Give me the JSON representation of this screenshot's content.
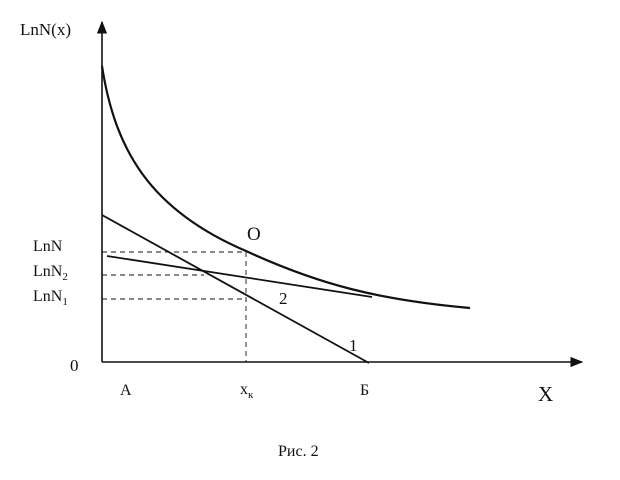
{
  "diagram": {
    "y_axis_label": "LnN(x)",
    "x_axis_label": "X",
    "origin_label": "0",
    "y_ticks": {
      "lnN": {
        "base": "LnN",
        "sub": ""
      },
      "lnN2": {
        "base": "LnN",
        "sub": "2"
      },
      "lnN1": {
        "base": "LnN",
        "sub": "1"
      }
    },
    "x_ticks": {
      "a": "А",
      "xk": {
        "base": "x",
        "sub": "к"
      },
      "b": "Б"
    },
    "point_label": "O",
    "line1_label": "1",
    "line2_label": "2",
    "caption": "Рис. 2"
  }
}
